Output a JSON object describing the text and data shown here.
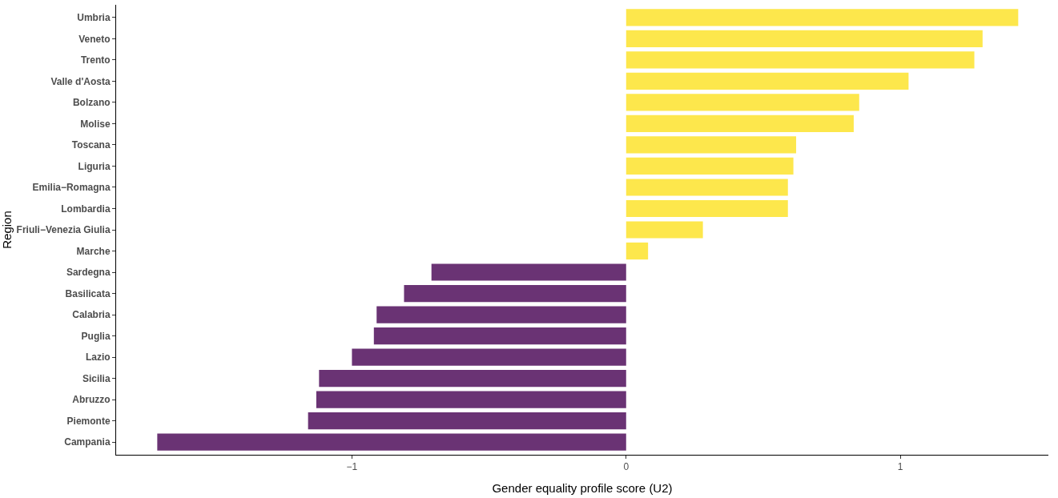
{
  "chart_data": {
    "type": "bar",
    "orientation": "horizontal",
    "xlabel": "Gender equality profile score (U2)",
    "ylabel": "Region",
    "categories": [
      "Umbria",
      "Veneto",
      "Trento",
      "Valle d'Aosta",
      "Bolzano",
      "Molise",
      "Toscana",
      "Liguria",
      "Emilia−Romagna",
      "Lombardia",
      "Friuli−Venezia Giulia",
      "Marche",
      "Sardegna",
      "Basilicata",
      "Calabria",
      "Puglia",
      "Lazio",
      "Sicilia",
      "Abruzzo",
      "Piemonte",
      "Campania"
    ],
    "values": [
      1.43,
      1.3,
      1.27,
      1.03,
      0.85,
      0.83,
      0.62,
      0.61,
      0.59,
      0.59,
      0.28,
      0.08,
      -0.71,
      -0.81,
      -0.91,
      -0.92,
      -1.0,
      -1.12,
      -1.13,
      -1.16,
      -1.71
    ],
    "colors": [
      "#fde74c",
      "#fde74c",
      "#fde74c",
      "#fde74c",
      "#fde74c",
      "#fde74c",
      "#fde74c",
      "#fde74c",
      "#fde74c",
      "#fde74c",
      "#fde74c",
      "#fde74c",
      "#6a3374",
      "#6a3374",
      "#6a3374",
      "#6a3374",
      "#6a3374",
      "#6a3374",
      "#6a3374",
      "#6a3374",
      "#6a3374"
    ],
    "xlim": [
      -1.86,
      1.54
    ],
    "xticks": [
      {
        "value": -1,
        "label": "−1"
      },
      0,
      1
    ]
  }
}
